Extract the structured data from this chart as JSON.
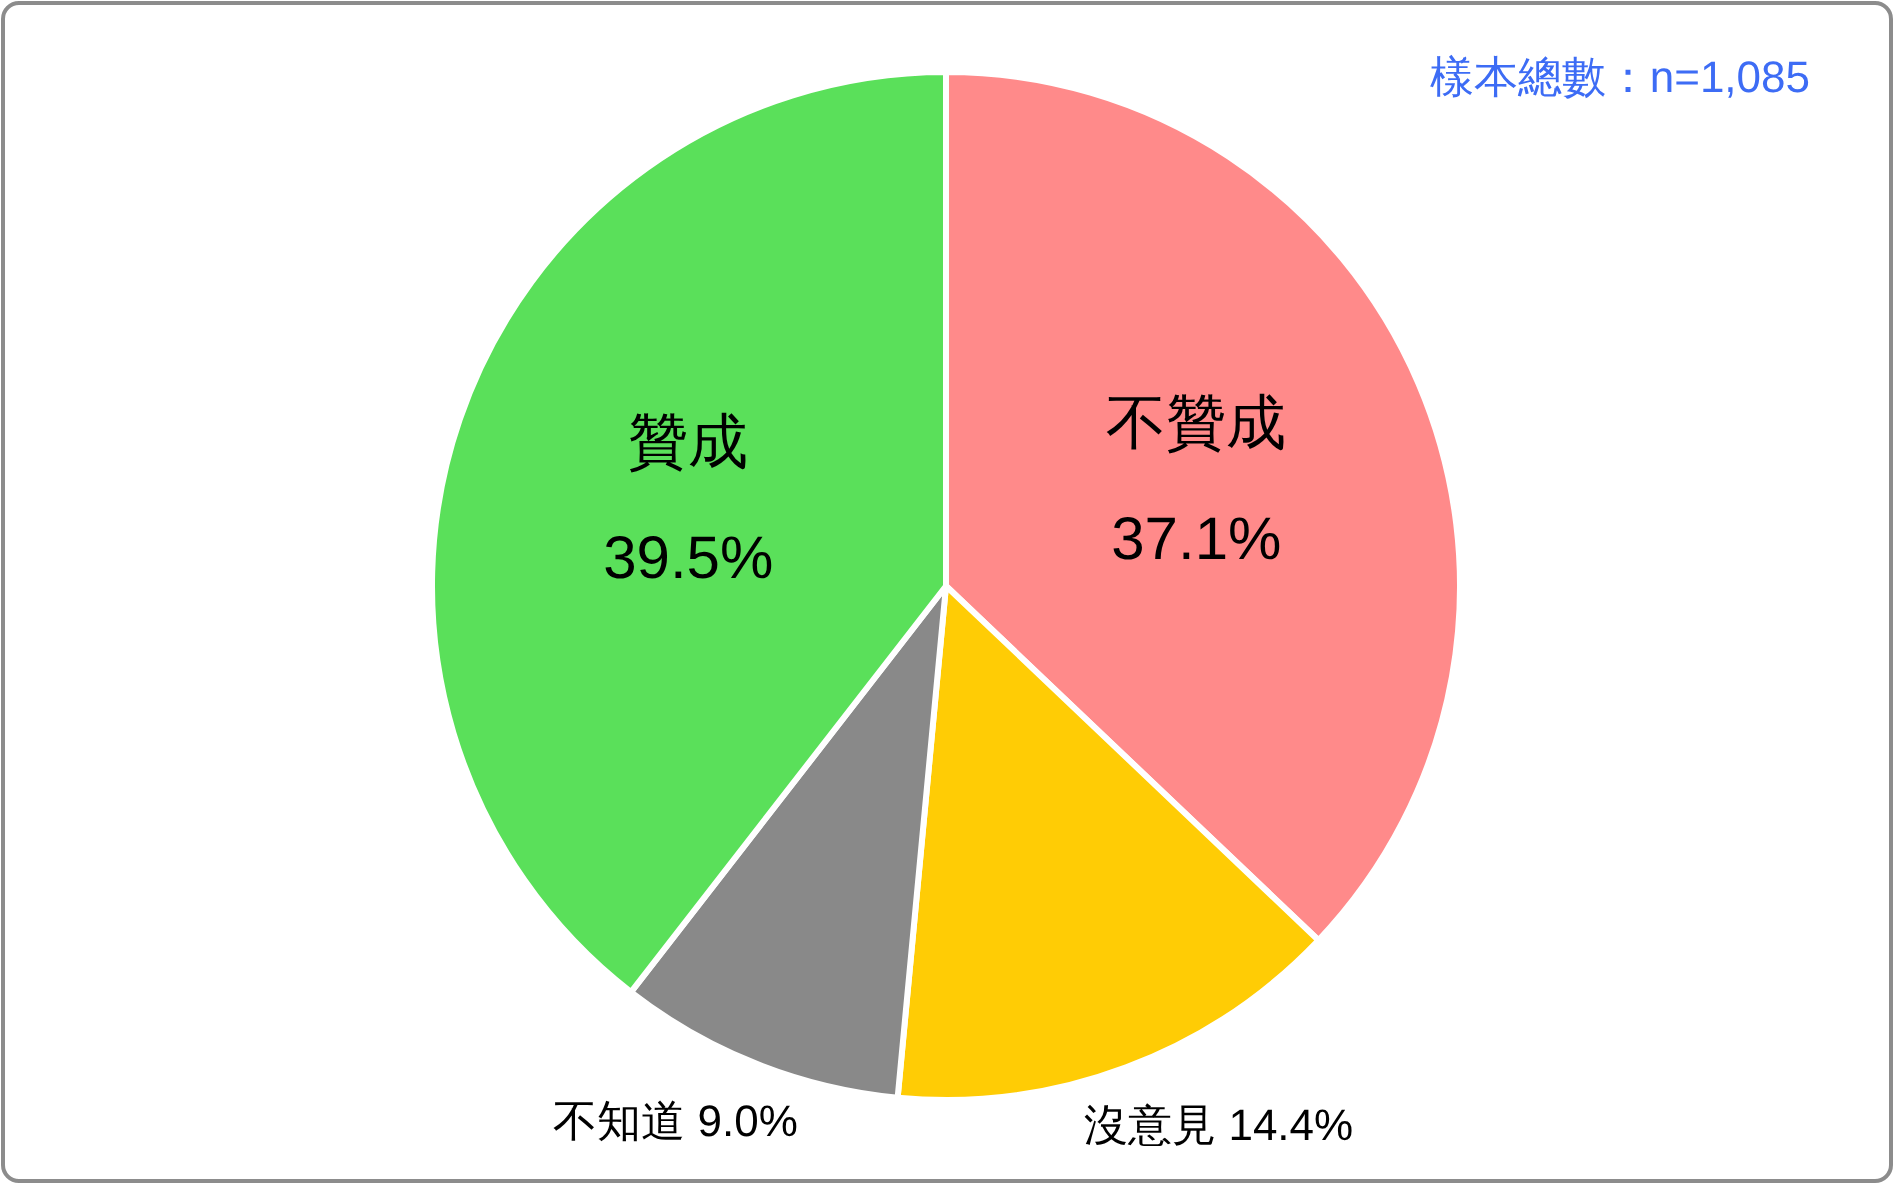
{
  "chart_data": {
    "type": "pie",
    "categories": [
      "不贊成",
      "沒意見",
      "不知道",
      "贊成"
    ],
    "values": [
      37.1,
      14.4,
      9.0,
      39.5
    ],
    "value_labels": [
      "37.1%",
      "14.4%",
      "9.0%",
      "39.5%"
    ],
    "colors": [
      "#ff8a8a",
      "#ffcc05",
      "#898989",
      "#5ae05a"
    ],
    "annotations": [
      "樣本總數：n=1,085"
    ]
  }
}
